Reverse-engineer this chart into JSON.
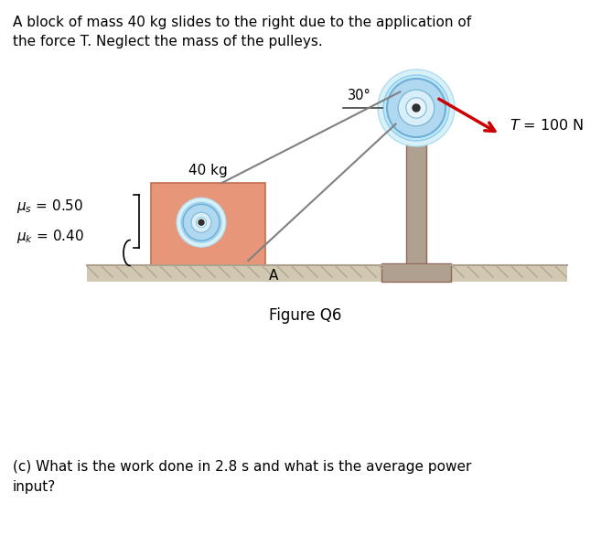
{
  "title_text": "A block of mass 40 kg slides to the right due to the application of\nthe force T. Neglect the mass of the pulleys.",
  "figure_label": "Figure Q6",
  "question_text_full": "(c) What is the work done in 2.8 s and what is the average power\ninput?",
  "block_label": "40 kg",
  "A_label": "A",
  "angle_label": "30°",
  "bg_color": "#ffffff",
  "block_color": "#e8967a",
  "block_edge_color": "#c07050",
  "ground_color": "#c8bfa8",
  "post_color": "#b0a090",
  "post_edge_color": "#906858",
  "rope_color": "#808080",
  "arrow_color": "#cc0000",
  "pulley_outer_color": "#c0e0f0",
  "pulley_mid_color": "#90c8e8",
  "pulley_inner_color": "#d8f0f8",
  "pulley_dot_color": "#303030",
  "hatch_color": "#b0a090"
}
